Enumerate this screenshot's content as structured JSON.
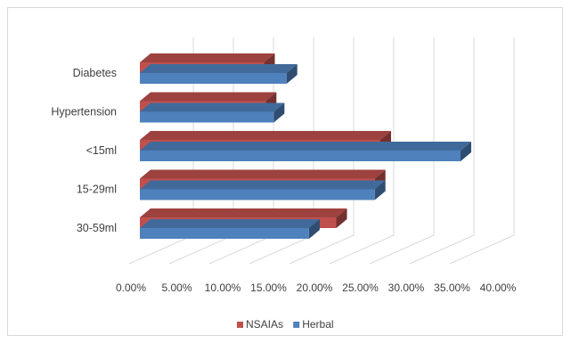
{
  "chart_data": {
    "type": "bar",
    "orientation": "horizontal",
    "style": "3d-clustered",
    "title": "",
    "xlabel": "",
    "ylabel": "",
    "categories": [
      "Diabetes",
      "Hypertension",
      "<15ml",
      "15-29ml",
      "30-59ml"
    ],
    "series": [
      {
        "name": "NSAIAs",
        "color": "#c0504d",
        "values": [
          0.155,
          0.157,
          0.3,
          0.293,
          0.245
        ]
      },
      {
        "name": "Herbal",
        "color": "#4f81bd",
        "values": [
          0.183,
          0.167,
          0.4,
          0.293,
          0.211
        ]
      }
    ],
    "xlim": [
      0,
      0.4
    ],
    "x_ticks": [
      "0.00%",
      "5.00%",
      "10.00%",
      "15.00%",
      "20.00%",
      "25.00%",
      "30.00%",
      "35.00%",
      "40.00%"
    ],
    "grid": true,
    "legend": "bottom"
  }
}
